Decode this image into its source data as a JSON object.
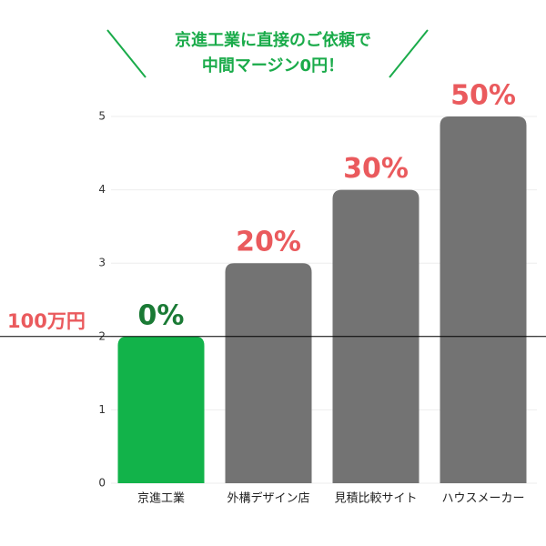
{
  "chart_data": {
    "type": "bar",
    "title_lines": [
      "京進工業に直接のご依頼で",
      "中間マージン0円！"
    ],
    "title_color": "#1aab4a",
    "categories": [
      "京進工業",
      "外構デザイン店",
      "見積比較サイト",
      "ハウスメーカー"
    ],
    "values": [
      2,
      3,
      4,
      5
    ],
    "colors": [
      "#12b34a",
      "#737373",
      "#737373",
      "#737373"
    ],
    "bar_annotations": [
      "0%",
      "20%",
      "30%",
      "50%"
    ],
    "bar_annotation_colors": [
      "#1a7a35",
      "#ea5a5d",
      "#ea5a5d",
      "#ea5a5d"
    ],
    "ylim": [
      0,
      5
    ],
    "yticks": [
      0,
      1,
      2,
      3,
      4,
      5
    ],
    "grid": true,
    "reference_line": {
      "value": 2,
      "label": "100万円",
      "color": "#ea5a5d"
    }
  }
}
